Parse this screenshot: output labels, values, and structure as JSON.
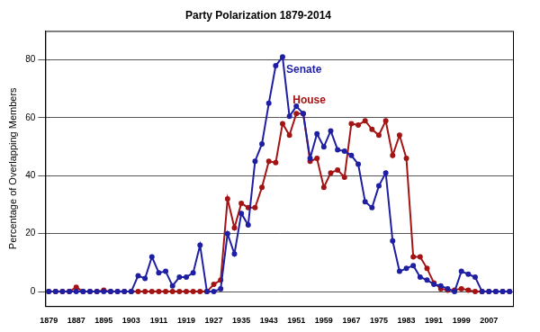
{
  "chart_data": {
    "type": "line",
    "title": "Party Polarization 1879-2014",
    "y_label": "Percentage of Overlapping Members",
    "categories": [
      "1879",
      null,
      null,
      null,
      "1887",
      null,
      null,
      null,
      "1895",
      null,
      null,
      null,
      "1903",
      null,
      null,
      null,
      "1911",
      null,
      null,
      null,
      "1919",
      null,
      null,
      null,
      "1927",
      null,
      null,
      null,
      "1935",
      null,
      null,
      null,
      "1943",
      null,
      null,
      null,
      "1951",
      null,
      null,
      null,
      "1959",
      null,
      null,
      null,
      "1967",
      null,
      null,
      null,
      "1975",
      null,
      null,
      null,
      "1983",
      null,
      null,
      null,
      "1991",
      null,
      null,
      null,
      "1999",
      null,
      null,
      null,
      "2007",
      null,
      null,
      null
    ],
    "series": [
      {
        "name": "Senate",
        "color": "#1f1fa3",
        "marker": "circle",
        "line_style": "solid",
        "values": [
          0,
          0,
          0,
          0,
          0,
          0,
          0,
          0,
          0,
          0,
          0,
          0,
          0,
          5.5,
          4.5,
          12,
          6.5,
          7,
          2,
          5,
          5,
          6.5,
          16,
          0,
          0,
          1,
          20,
          13,
          27,
          23,
          45,
          51,
          65,
          78,
          81,
          60.5,
          64,
          61.5,
          46,
          54.5,
          50,
          55.5,
          49,
          48.5,
          47,
          44,
          31,
          29,
          36.5,
          41,
          17.5,
          7,
          8,
          9,
          5,
          4,
          2.5,
          2,
          1,
          0,
          7,
          6,
          5,
          0,
          0,
          0,
          0,
          0
        ]
      },
      {
        "name": "House",
        "color": "#a31414",
        "marker": "circle",
        "line_style": "solid",
        "values": [
          0,
          0,
          0,
          0,
          1.5,
          0,
          0,
          0,
          0.5,
          0,
          0,
          0,
          0,
          0,
          0,
          0,
          0,
          0,
          0,
          0,
          0,
          0,
          0,
          0,
          2.5,
          4,
          32,
          22,
          30.5,
          29,
          29,
          36,
          45,
          44.5,
          58,
          54,
          61.5,
          61.5,
          45,
          46,
          36,
          41,
          42,
          39.5,
          58,
          57.5,
          59,
          56,
          54,
          59,
          47,
          54,
          46,
          12,
          12,
          8,
          3,
          1,
          0.5,
          0.5,
          1,
          0.5,
          0,
          0,
          0,
          0,
          0,
          0
        ]
      }
    ],
    "ylim": [
      -5,
      90
    ],
    "yticks": [
      0,
      20,
      40,
      60,
      80
    ],
    "grid": true
  }
}
